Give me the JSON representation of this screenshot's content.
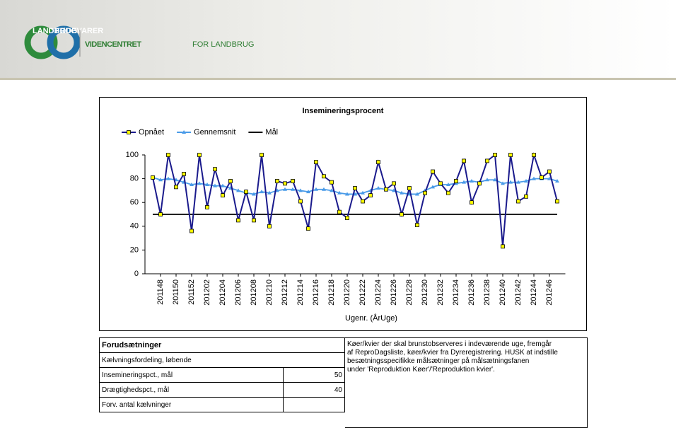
{
  "header": {
    "logo_left": "LANDBRUG",
    "logo_right": "FØDEVARER",
    "brand_bold": "VIDENCENTRET",
    "brand_rest": "FOR LANDBRUG"
  },
  "chart_data": {
    "type": "line",
    "title": "Insemineringsprocent",
    "xlabel": "Ugenr. (ÅrUge)",
    "categories": [
      null,
      "201148",
      null,
      "201150",
      null,
      "201152",
      null,
      "201202",
      null,
      "201204",
      null,
      "201206",
      null,
      "201208",
      null,
      "201210",
      null,
      "201212",
      null,
      "201214",
      null,
      "201216",
      null,
      "201218",
      null,
      "201220",
      null,
      "201222",
      null,
      "201224",
      null,
      "201226",
      null,
      "201228",
      null,
      "201230",
      null,
      "201232",
      null,
      "201234",
      null,
      "201236",
      null,
      "201238",
      null,
      "201240",
      null,
      "201242",
      null,
      "201244",
      null,
      "201246",
      null
    ],
    "series": [
      {
        "name": "Opnået",
        "color": "#1a1a8c",
        "marker": "square",
        "marker_color": "#ffff00",
        "values": [
          81,
          50,
          100,
          73,
          84,
          36,
          100,
          56,
          88,
          66,
          78,
          45,
          69,
          45,
          100,
          40,
          78,
          76,
          78,
          61,
          38,
          94,
          82,
          77,
          52,
          47,
          72,
          61,
          66,
          94,
          71,
          76,
          50,
          72,
          41,
          68,
          86,
          76,
          68,
          78,
          95,
          60,
          76,
          95,
          100,
          23,
          100,
          61,
          65,
          100,
          81,
          86,
          61
        ]
      },
      {
        "name": "Gennemsnit",
        "color": "#4a9be8",
        "marker": "triangle",
        "marker_color": "#4a9be8",
        "values": [
          81,
          79,
          80,
          79,
          77,
          75,
          76,
          75,
          74,
          74,
          72,
          70,
          68,
          67,
          69,
          68,
          70,
          71,
          71,
          70,
          69,
          71,
          71,
          70,
          68,
          67,
          67,
          68,
          70,
          72,
          71,
          70,
          68,
          67,
          67,
          70,
          73,
          75,
          75,
          76,
          77,
          78,
          77,
          79,
          79,
          76,
          77,
          77,
          78,
          80,
          80,
          80,
          78
        ]
      },
      {
        "name": "Mål",
        "color": "#000000",
        "marker": "none",
        "values": [
          50,
          50,
          50,
          50,
          50,
          50,
          50,
          50,
          50,
          50,
          50,
          50,
          50,
          50,
          50,
          50,
          50,
          50,
          50,
          50,
          50,
          50,
          50,
          50,
          50,
          50,
          50,
          50,
          50,
          50,
          50,
          50,
          50,
          50,
          50,
          50,
          50,
          50,
          50,
          50,
          50,
          50,
          50,
          50,
          50,
          50,
          50,
          50,
          50,
          50,
          50,
          50,
          50
        ]
      }
    ],
    "ylim": [
      0,
      100
    ],
    "yticks": [
      0,
      20,
      40,
      60,
      80,
      100
    ],
    "grid": false,
    "legend": "top-left"
  },
  "table": {
    "title": "Forudsætninger",
    "rows": [
      [
        "Kælvningsfordeling, løbende"
      ],
      [
        "Insemineringspct., mål",
        "50"
      ],
      [
        "Drægtighedspct., mål",
        "40"
      ],
      [
        "Forv. antal kælvninger",
        ""
      ]
    ],
    "note": [
      "Køer/kvier der skal brunstobserveres i indeværende uge, fremgår",
      "af ReproDagsliste, køer/kvier fra Dyreregistrering. HUSK at indstille",
      "besætningsspecifikke målsætninger på målsætningsfanen",
      "under 'Reproduktion Køer'/'Reproduktion kvier'."
    ]
  }
}
